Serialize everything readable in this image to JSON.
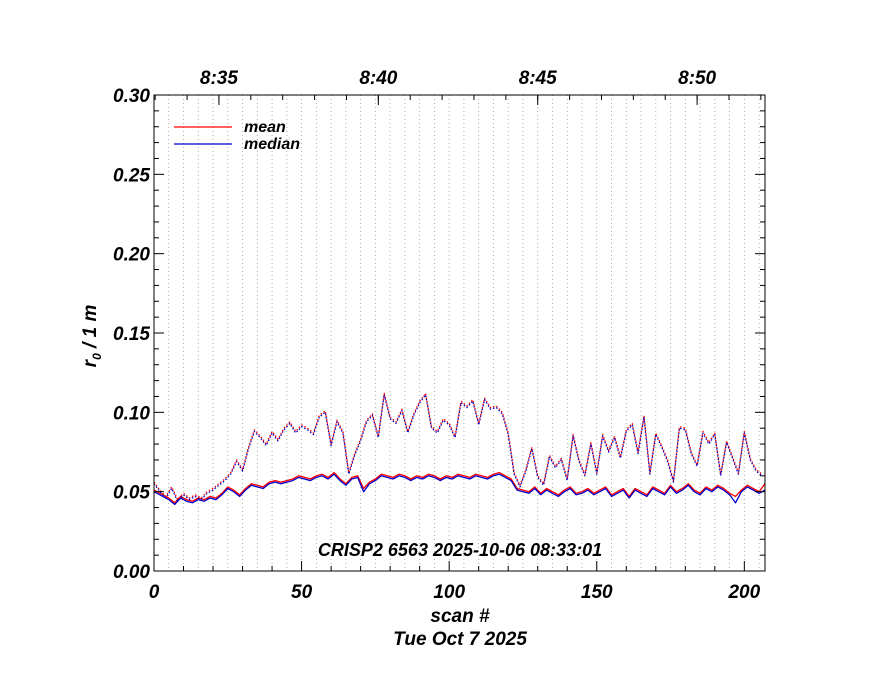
{
  "chart_data": {
    "type": "line",
    "title": "",
    "annotation": "CRISP2 6563 2025-10-06 08:33:01",
    "xlabel": "scan #",
    "xlabel_date": "Tue Oct  7 2025",
    "ylabel_main": "r",
    "ylabel_sub": "0",
    "ylabel_rest": " / 1 m",
    "xlim": [
      0,
      207
    ],
    "ylim": [
      0.0,
      0.3
    ],
    "x_ticks": [
      0,
      50,
      100,
      150,
      200
    ],
    "x_tick_labels": [
      "0",
      "50",
      "100",
      "150",
      "200"
    ],
    "y_ticks": [
      0.0,
      0.05,
      0.1,
      0.15,
      0.2,
      0.25,
      0.3
    ],
    "y_tick_labels": [
      "0.00",
      "0.05",
      "0.10",
      "0.15",
      "0.20",
      "0.25",
      "0.30"
    ],
    "top_axis": {
      "ticks_scan": [
        22,
        76,
        130,
        184
      ],
      "tick_labels": [
        "8:35",
        "8:40",
        "8:45",
        "8:50"
      ]
    },
    "grid": "vertical dotted every 5 scans",
    "legend": {
      "placement": "top-left",
      "entries": [
        {
          "label": "mean",
          "color": "#ff0000"
        },
        {
          "label": "median",
          "color": "#0000cc"
        }
      ]
    },
    "series": [
      {
        "name": "mean (solid)",
        "color": "#ff0000",
        "style": "solid",
        "x": [
          0,
          3,
          5,
          7,
          9,
          11,
          13,
          15,
          17,
          19,
          21,
          23,
          25,
          27,
          29,
          31,
          33,
          35,
          37,
          39,
          41,
          43,
          45,
          47,
          49,
          51,
          53,
          55,
          57,
          59,
          61,
          63,
          65,
          67,
          69,
          71,
          73,
          75,
          77,
          79,
          81,
          83,
          85,
          87,
          89,
          91,
          93,
          95,
          97,
          99,
          101,
          103,
          105,
          107,
          109,
          111,
          113,
          115,
          117,
          119,
          121,
          123,
          125,
          127,
          129,
          131,
          133,
          135,
          137,
          139,
          141,
          143,
          145,
          147,
          149,
          151,
          153,
          155,
          157,
          159,
          161,
          163,
          165,
          167,
          169,
          171,
          173,
          175,
          177,
          179,
          181,
          183,
          185,
          187,
          189,
          191,
          193,
          195,
          197,
          199,
          201,
          203,
          205,
          207
        ],
        "y": [
          0.051,
          0.048,
          0.046,
          0.043,
          0.047,
          0.045,
          0.044,
          0.046,
          0.045,
          0.047,
          0.046,
          0.049,
          0.053,
          0.051,
          0.048,
          0.052,
          0.055,
          0.054,
          0.053,
          0.056,
          0.057,
          0.056,
          0.057,
          0.058,
          0.06,
          0.059,
          0.058,
          0.06,
          0.061,
          0.059,
          0.062,
          0.058,
          0.055,
          0.059,
          0.06,
          0.052,
          0.056,
          0.058,
          0.061,
          0.06,
          0.059,
          0.061,
          0.06,
          0.058,
          0.06,
          0.059,
          0.061,
          0.06,
          0.058,
          0.06,
          0.059,
          0.061,
          0.06,
          0.059,
          0.061,
          0.06,
          0.059,
          0.061,
          0.062,
          0.06,
          0.058,
          0.052,
          0.051,
          0.05,
          0.053,
          0.049,
          0.052,
          0.05,
          0.048,
          0.051,
          0.053,
          0.049,
          0.05,
          0.052,
          0.049,
          0.051,
          0.053,
          0.048,
          0.05,
          0.052,
          0.047,
          0.052,
          0.05,
          0.048,
          0.053,
          0.051,
          0.049,
          0.054,
          0.05,
          0.052,
          0.055,
          0.051,
          0.049,
          0.053,
          0.051,
          0.054,
          0.052,
          0.049,
          0.047,
          0.051,
          0.054,
          0.052,
          0.05,
          0.055
        ]
      },
      {
        "name": "median (solid)",
        "color": "#0000cc",
        "style": "solid",
        "x": [
          0,
          3,
          5,
          7,
          9,
          11,
          13,
          15,
          17,
          19,
          21,
          23,
          25,
          27,
          29,
          31,
          33,
          35,
          37,
          39,
          41,
          43,
          45,
          47,
          49,
          51,
          53,
          55,
          57,
          59,
          61,
          63,
          65,
          67,
          69,
          71,
          73,
          75,
          77,
          79,
          81,
          83,
          85,
          87,
          89,
          91,
          93,
          95,
          97,
          99,
          101,
          103,
          105,
          107,
          109,
          111,
          113,
          115,
          117,
          119,
          121,
          123,
          125,
          127,
          129,
          131,
          133,
          135,
          137,
          139,
          141,
          143,
          145,
          147,
          149,
          151,
          153,
          155,
          157,
          159,
          161,
          163,
          165,
          167,
          169,
          171,
          173,
          175,
          177,
          179,
          181,
          183,
          185,
          187,
          189,
          191,
          193,
          195,
          197,
          199,
          201,
          203,
          205,
          207
        ],
        "y": [
          0.05,
          0.047,
          0.045,
          0.042,
          0.046,
          0.044,
          0.043,
          0.045,
          0.044,
          0.046,
          0.045,
          0.048,
          0.052,
          0.05,
          0.047,
          0.051,
          0.054,
          0.053,
          0.052,
          0.055,
          0.056,
          0.055,
          0.056,
          0.057,
          0.059,
          0.058,
          0.057,
          0.059,
          0.06,
          0.058,
          0.061,
          0.057,
          0.054,
          0.058,
          0.059,
          0.05,
          0.055,
          0.057,
          0.06,
          0.059,
          0.058,
          0.06,
          0.059,
          0.057,
          0.059,
          0.058,
          0.06,
          0.059,
          0.057,
          0.059,
          0.058,
          0.06,
          0.059,
          0.058,
          0.06,
          0.059,
          0.058,
          0.06,
          0.061,
          0.059,
          0.057,
          0.051,
          0.05,
          0.049,
          0.052,
          0.048,
          0.051,
          0.049,
          0.047,
          0.05,
          0.052,
          0.048,
          0.049,
          0.051,
          0.048,
          0.05,
          0.052,
          0.047,
          0.049,
          0.051,
          0.046,
          0.051,
          0.049,
          0.047,
          0.052,
          0.05,
          0.048,
          0.053,
          0.049,
          0.051,
          0.054,
          0.05,
          0.048,
          0.052,
          0.05,
          0.053,
          0.051,
          0.048,
          0.043,
          0.05,
          0.053,
          0.051,
          0.049,
          0.051
        ]
      },
      {
        "name": "mean (dotted)",
        "color": "#ff0000",
        "style": "dotted",
        "x": [
          0,
          2,
          4,
          6,
          8,
          10,
          12,
          14,
          16,
          18,
          20,
          22,
          24,
          26,
          28,
          30,
          32,
          34,
          36,
          38,
          40,
          42,
          44,
          46,
          48,
          50,
          52,
          54,
          56,
          58,
          60,
          62,
          64,
          66,
          68,
          70,
          72,
          74,
          76,
          78,
          80,
          82,
          84,
          86,
          88,
          90,
          92,
          94,
          96,
          98,
          100,
          102,
          104,
          106,
          108,
          110,
          112,
          114,
          116,
          118,
          120,
          122,
          124,
          126,
          128,
          130,
          132,
          134,
          136,
          138,
          140,
          142,
          144,
          146,
          148,
          150,
          152,
          154,
          156,
          158,
          160,
          162,
          164,
          166,
          168,
          170,
          172,
          174,
          176,
          178,
          180,
          182,
          184,
          186,
          188,
          190,
          192,
          194,
          196,
          198,
          200,
          202,
          204,
          206
        ],
        "y": [
          0.056,
          0.051,
          0.047,
          0.053,
          0.045,
          0.049,
          0.046,
          0.048,
          0.046,
          0.05,
          0.052,
          0.055,
          0.058,
          0.062,
          0.07,
          0.064,
          0.078,
          0.089,
          0.085,
          0.08,
          0.088,
          0.083,
          0.09,
          0.094,
          0.088,
          0.092,
          0.09,
          0.087,
          0.098,
          0.101,
          0.08,
          0.095,
          0.088,
          0.062,
          0.074,
          0.083,
          0.095,
          0.099,
          0.085,
          0.112,
          0.097,
          0.094,
          0.102,
          0.088,
          0.099,
          0.107,
          0.112,
          0.091,
          0.088,
          0.096,
          0.093,
          0.085,
          0.107,
          0.104,
          0.108,
          0.093,
          0.109,
          0.103,
          0.104,
          0.1,
          0.087,
          0.062,
          0.054,
          0.064,
          0.078,
          0.06,
          0.055,
          0.073,
          0.066,
          0.071,
          0.058,
          0.086,
          0.07,
          0.061,
          0.081,
          0.062,
          0.086,
          0.076,
          0.085,
          0.072,
          0.089,
          0.093,
          0.075,
          0.098,
          0.062,
          0.087,
          0.079,
          0.07,
          0.057,
          0.091,
          0.09,
          0.075,
          0.067,
          0.088,
          0.081,
          0.087,
          0.061,
          0.082,
          0.072,
          0.062,
          0.088,
          0.071,
          0.064,
          0.061
        ]
      },
      {
        "name": "median (dotted)",
        "color": "#0000cc",
        "style": "dotted",
        "x": [
          0,
          2,
          4,
          6,
          8,
          10,
          12,
          14,
          16,
          18,
          20,
          22,
          24,
          26,
          28,
          30,
          32,
          34,
          36,
          38,
          40,
          42,
          44,
          46,
          48,
          50,
          52,
          54,
          56,
          58,
          60,
          62,
          64,
          66,
          68,
          70,
          72,
          74,
          76,
          78,
          80,
          82,
          84,
          86,
          88,
          90,
          92,
          94,
          96,
          98,
          100,
          102,
          104,
          106,
          108,
          110,
          112,
          114,
          116,
          118,
          120,
          122,
          124,
          126,
          128,
          130,
          132,
          134,
          136,
          138,
          140,
          142,
          144,
          146,
          148,
          150,
          152,
          154,
          156,
          158,
          160,
          162,
          164,
          166,
          168,
          170,
          172,
          174,
          176,
          178,
          180,
          182,
          184,
          186,
          188,
          190,
          192,
          194,
          196,
          198,
          200,
          202,
          204,
          206
        ],
        "y": [
          0.055,
          0.05,
          0.046,
          0.052,
          0.044,
          0.048,
          0.045,
          0.047,
          0.045,
          0.049,
          0.051,
          0.054,
          0.057,
          0.061,
          0.069,
          0.063,
          0.077,
          0.088,
          0.084,
          0.079,
          0.087,
          0.082,
          0.089,
          0.093,
          0.087,
          0.091,
          0.089,
          0.086,
          0.097,
          0.1,
          0.079,
          0.094,
          0.087,
          0.061,
          0.073,
          0.082,
          0.094,
          0.098,
          0.084,
          0.111,
          0.096,
          0.093,
          0.101,
          0.087,
          0.098,
          0.106,
          0.111,
          0.09,
          0.087,
          0.095,
          0.092,
          0.084,
          0.106,
          0.103,
          0.107,
          0.092,
          0.108,
          0.102,
          0.103,
          0.099,
          0.086,
          0.061,
          0.053,
          0.063,
          0.077,
          0.059,
          0.054,
          0.072,
          0.065,
          0.07,
          0.057,
          0.085,
          0.069,
          0.06,
          0.08,
          0.061,
          0.085,
          0.075,
          0.084,
          0.071,
          0.088,
          0.092,
          0.074,
          0.097,
          0.061,
          0.086,
          0.078,
          0.069,
          0.056,
          0.09,
          0.089,
          0.074,
          0.066,
          0.087,
          0.08,
          0.086,
          0.06,
          0.081,
          0.071,
          0.061,
          0.087,
          0.07,
          0.063,
          0.06
        ]
      }
    ]
  }
}
